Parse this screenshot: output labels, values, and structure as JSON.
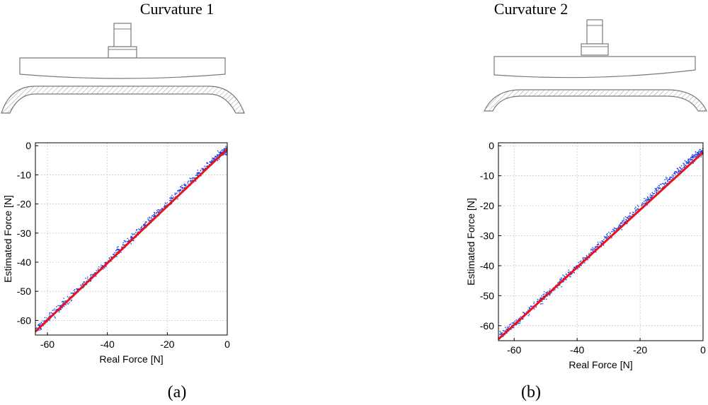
{
  "panels": [
    {
      "title": "Curvature 1",
      "subcaption": "(a)"
    },
    {
      "title": "Curvature 2",
      "subcaption": "(b)"
    }
  ],
  "colors": {
    "scatter": "#1f3de0",
    "fit_line": "#e8141c",
    "grid": "#b8b8b8",
    "drawing_line": "#7a7a7a",
    "hatch": "#9a9a9a"
  },
  "chart_data": [
    {
      "type": "scatter",
      "title": "",
      "xlabel": "Real Force [N]",
      "ylabel": "Estimated Force [N]",
      "xlim": [
        -64,
        0
      ],
      "ylim": [
        -65,
        1
      ],
      "xticks": [
        -60,
        -40,
        -20,
        0
      ],
      "yticks": [
        0,
        -10,
        -20,
        -30,
        -40,
        -50,
        -60
      ],
      "grid": true,
      "series": [
        {
          "kind": "points",
          "x": [
            -63.5,
            -60,
            -55,
            -50,
            -45,
            -40,
            -35,
            -30,
            -25,
            -20,
            -15,
            -10,
            -5,
            -2,
            0
          ],
          "y": [
            -63,
            -59.8,
            -54.7,
            -49.6,
            -44.9,
            -40.1,
            -34.8,
            -29.9,
            -24.6,
            -20.2,
            -14.9,
            -10.1,
            -5.2,
            -2.6,
            -1.5
          ]
        },
        {
          "kind": "line",
          "x": [
            -64,
            0
          ],
          "y": [
            -63.8,
            -1.2
          ]
        }
      ]
    },
    {
      "type": "scatter",
      "title": "",
      "xlabel": "Real Force [N]",
      "ylabel": "Estimated Force [N]",
      "xlim": [
        -65,
        0
      ],
      "ylim": [
        -65,
        1
      ],
      "xticks": [
        -60,
        -40,
        -20,
        0
      ],
      "yticks": [
        0,
        -10,
        -20,
        -30,
        -40,
        -50,
        -60
      ],
      "grid": true,
      "series": [
        {
          "kind": "points",
          "x": [
            -64.5,
            -60,
            -55,
            -50,
            -45,
            -40,
            -35,
            -30,
            -25,
            -20,
            -15,
            -10,
            -5,
            -2,
            0
          ],
          "y": [
            -63.2,
            -59.5,
            -54.8,
            -50.1,
            -45.2,
            -40.3,
            -35.1,
            -30.2,
            -25.4,
            -20.4,
            -15.3,
            -10.4,
            -5.6,
            -3.2,
            -1.8
          ]
        },
        {
          "kind": "line",
          "x": [
            -65,
            0
          ],
          "y": [
            -64.5,
            -2.2
          ]
        }
      ]
    }
  ]
}
